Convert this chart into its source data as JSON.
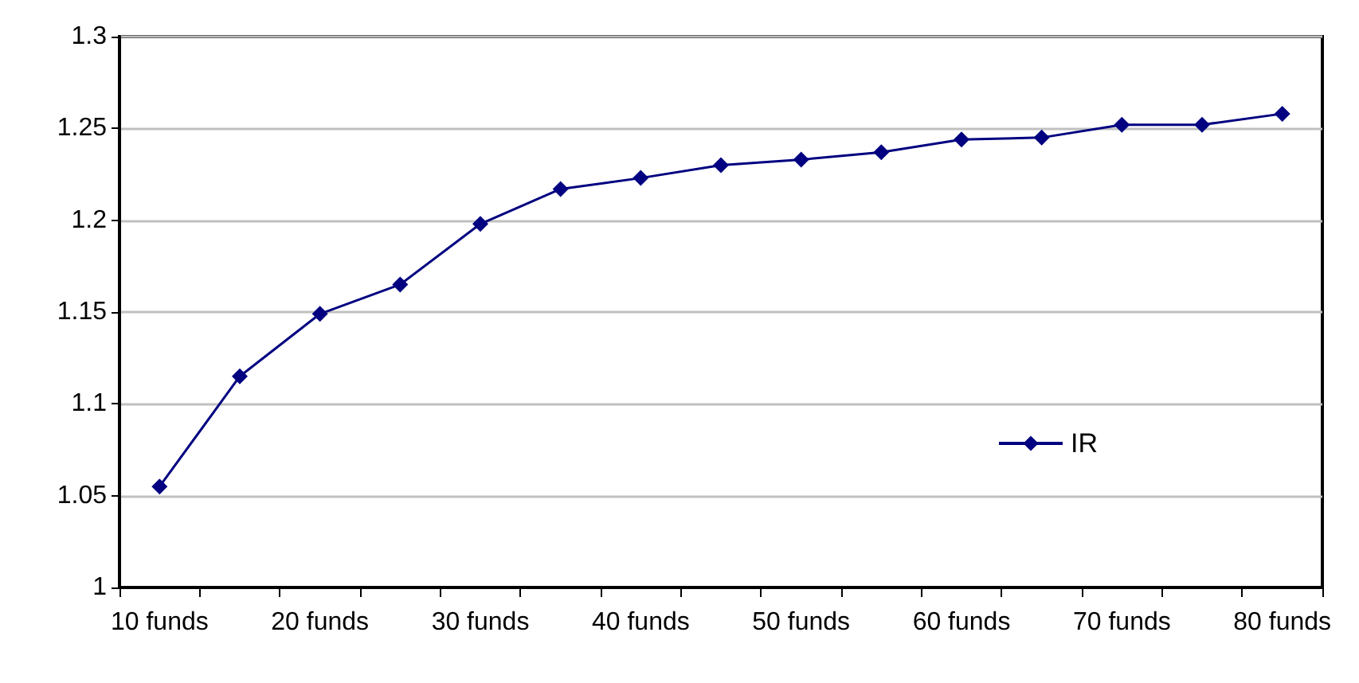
{
  "chart_data": {
    "type": "line",
    "categories": [
      "10 funds",
      null,
      "20 funds",
      null,
      "30 funds",
      null,
      "40 funds",
      null,
      "50 funds",
      null,
      "60 funds",
      null,
      "70 funds",
      null,
      "80 funds"
    ],
    "series": [
      {
        "name": "IR",
        "color": "#000080",
        "values": [
          1.055,
          1.115,
          1.149,
          1.165,
          1.198,
          1.217,
          1.223,
          1.23,
          1.233,
          1.237,
          1.244,
          1.245,
          1.252,
          1.252,
          1.258
        ]
      }
    ],
    "ylim": [
      1,
      1.3
    ],
    "yticks": [
      1,
      1.05,
      1.1,
      1.15,
      1.2,
      1.25,
      1.3
    ],
    "grid": "y",
    "legend": "right",
    "marker": "diamond",
    "line_style": "solid"
  }
}
